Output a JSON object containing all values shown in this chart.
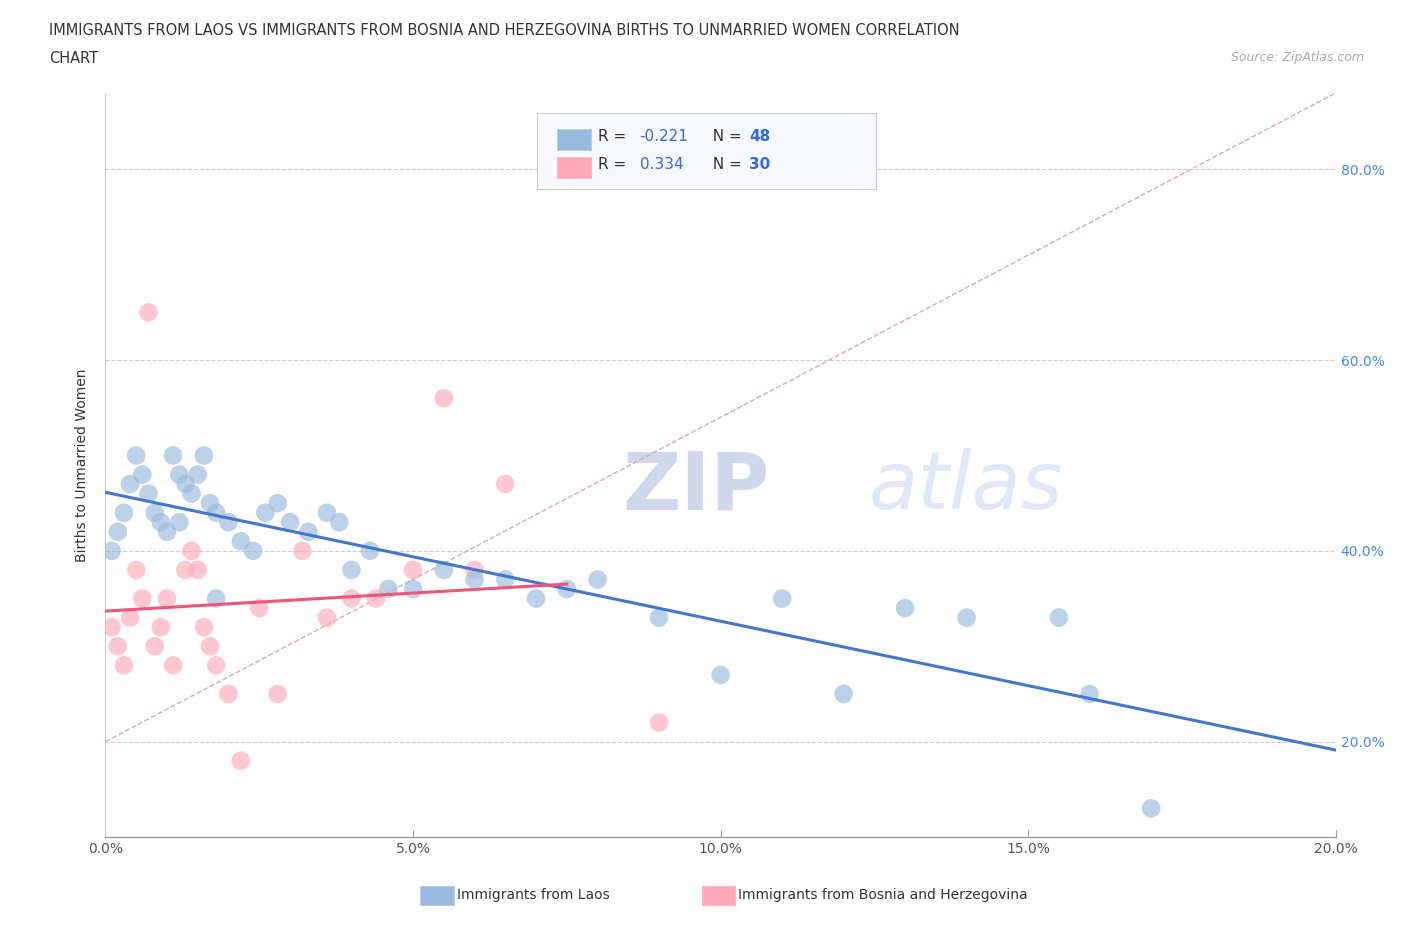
{
  "title_line1": "IMMIGRANTS FROM LAOS VS IMMIGRANTS FROM BOSNIA AND HERZEGOVINA BIRTHS TO UNMARRIED WOMEN CORRELATION",
  "title_line2": "CHART",
  "source_text": "Source: ZipAtlas.com",
  "ylabel": "Births to Unmarried Women",
  "xlim": [
    0.0,
    0.2
  ],
  "ylim": [
    0.1,
    0.88
  ],
  "xticks": [
    0.0,
    0.05,
    0.1,
    0.15,
    0.2
  ],
  "yticks": [
    0.2,
    0.4,
    0.6,
    0.8
  ],
  "xtick_labels": [
    "0.0%",
    "5.0%",
    "10.0%",
    "15.0%",
    "20.0%"
  ],
  "ytick_labels": [
    "20.0%",
    "40.0%",
    "60.0%",
    "80.0%"
  ],
  "legend1_label": "Immigrants from Laos",
  "legend2_label": "Immigrants from Bosnia and Herzegovina",
  "R1": -0.221,
  "N1": 48,
  "R2": 0.334,
  "N2": 30,
  "color_blue": "#99BBDD",
  "color_pink": "#FFAABB",
  "color_blue_line": "#4477CC",
  "color_pink_line": "#EE5577",
  "color_dashed": "#DDAAAA",
  "watermark_color": "#CCDDEE",
  "blue_scatter_x": [
    0.001,
    0.002,
    0.003,
    0.004,
    0.005,
    0.006,
    0.007,
    0.008,
    0.009,
    0.01,
    0.011,
    0.012,
    0.013,
    0.014,
    0.015,
    0.016,
    0.017,
    0.018,
    0.02,
    0.022,
    0.024,
    0.026,
    0.028,
    0.03,
    0.033,
    0.036,
    0.038,
    0.04,
    0.043,
    0.046,
    0.05,
    0.055,
    0.06,
    0.065,
    0.07,
    0.075,
    0.08,
    0.09,
    0.1,
    0.11,
    0.12,
    0.13,
    0.14,
    0.155,
    0.16,
    0.17,
    0.012,
    0.018
  ],
  "blue_scatter_y": [
    0.4,
    0.42,
    0.44,
    0.47,
    0.5,
    0.48,
    0.46,
    0.44,
    0.43,
    0.42,
    0.5,
    0.48,
    0.47,
    0.46,
    0.48,
    0.5,
    0.45,
    0.44,
    0.43,
    0.41,
    0.4,
    0.44,
    0.45,
    0.43,
    0.42,
    0.44,
    0.43,
    0.38,
    0.4,
    0.36,
    0.36,
    0.38,
    0.37,
    0.37,
    0.35,
    0.36,
    0.37,
    0.33,
    0.27,
    0.35,
    0.25,
    0.34,
    0.33,
    0.33,
    0.25,
    0.13,
    0.43,
    0.35
  ],
  "pink_scatter_x": [
    0.001,
    0.002,
    0.003,
    0.004,
    0.005,
    0.006,
    0.007,
    0.008,
    0.009,
    0.01,
    0.011,
    0.013,
    0.014,
    0.015,
    0.016,
    0.017,
    0.018,
    0.02,
    0.022,
    0.025,
    0.028,
    0.032,
    0.036,
    0.04,
    0.044,
    0.05,
    0.055,
    0.06,
    0.065,
    0.09
  ],
  "pink_scatter_y": [
    0.32,
    0.3,
    0.28,
    0.33,
    0.38,
    0.35,
    0.65,
    0.3,
    0.32,
    0.35,
    0.28,
    0.38,
    0.4,
    0.38,
    0.32,
    0.3,
    0.28,
    0.25,
    0.18,
    0.34,
    0.25,
    0.4,
    0.33,
    0.35,
    0.35,
    0.38,
    0.56,
    0.38,
    0.47,
    0.22
  ]
}
